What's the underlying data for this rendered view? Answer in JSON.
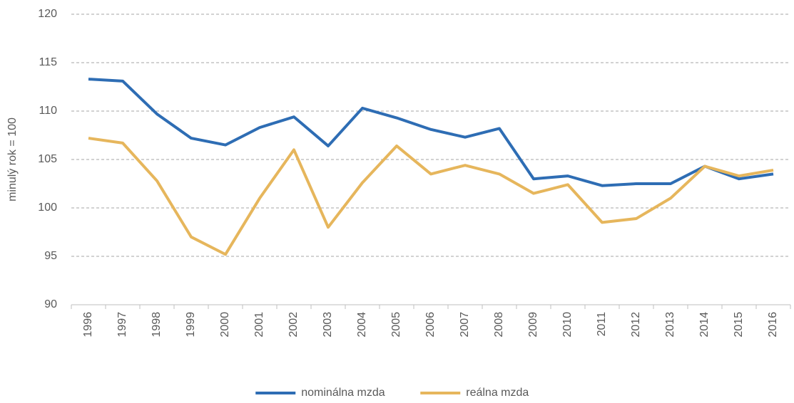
{
  "chart_data": {
    "type": "line",
    "y_label": "minulý rok = 100",
    "categories": [
      "1996",
      "1997",
      "1998",
      "1999",
      "2000",
      "2001",
      "2002",
      "2003",
      "2004",
      "2005",
      "2006",
      "2007",
      "2008",
      "2009",
      "2010",
      "2011",
      "2012",
      "2013",
      "2014",
      "2015",
      "2016"
    ],
    "series": [
      {
        "name": "nominálna mzda",
        "color": "#2e6db4",
        "values": [
          113.3,
          113.1,
          109.7,
          107.2,
          106.5,
          108.3,
          109.4,
          106.4,
          110.3,
          109.3,
          108.1,
          107.3,
          108.2,
          103.0,
          103.3,
          102.3,
          102.5,
          102.5,
          104.3,
          103.0,
          103.5
        ]
      },
      {
        "name": "reálna mzda",
        "color": "#e6b65c",
        "values": [
          107.2,
          106.7,
          102.8,
          97.0,
          95.2,
          101.0,
          106.0,
          98.0,
          102.6,
          106.4,
          103.5,
          104.4,
          103.5,
          101.5,
          102.4,
          98.5,
          98.9,
          101.0,
          104.3,
          103.3,
          103.9
        ]
      }
    ],
    "ylim": [
      90,
      120
    ],
    "yticks": [
      90,
      95,
      100,
      105,
      110,
      115,
      120
    ],
    "grid": true,
    "legend": "bottom"
  }
}
